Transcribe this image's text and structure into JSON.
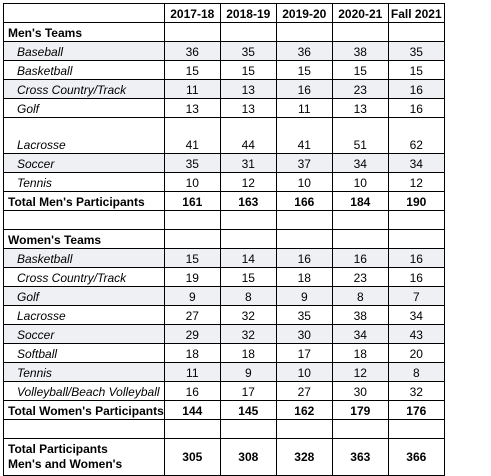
{
  "columns": [
    "2017-18",
    "2018-19",
    "2019-20",
    "2020-21",
    "Fall 2021"
  ],
  "mens": {
    "heading": "Men's Teams",
    "teams": [
      {
        "name": "Baseball",
        "values": [
          "36",
          "35",
          "36",
          "38",
          "35"
        ]
      },
      {
        "name": "Basketball",
        "values": [
          "15",
          "15",
          "15",
          "15",
          "15"
        ]
      },
      {
        "name": "Cross Country/Track",
        "values": [
          "11",
          "13",
          "16",
          "23",
          "16"
        ]
      },
      {
        "name": "Golf",
        "values": [
          "13",
          "13",
          "11",
          "13",
          "16"
        ]
      },
      {
        "name": "Lacrosse",
        "values": [
          "41",
          "44",
          "41",
          "51",
          "62"
        ]
      },
      {
        "name": "Soccer",
        "values": [
          "35",
          "31",
          "37",
          "34",
          "34"
        ]
      },
      {
        "name": "Tennis",
        "values": [
          "10",
          "12",
          "10",
          "10",
          "12"
        ]
      }
    ],
    "total": {
      "label": "Total Men's Participants",
      "values": [
        "161",
        "163",
        "166",
        "184",
        "190"
      ]
    }
  },
  "womens": {
    "heading": "Women's Teams",
    "teams": [
      {
        "name": "Basketball",
        "values": [
          "15",
          "14",
          "16",
          "16",
          "16"
        ]
      },
      {
        "name": "Cross Country/Track",
        "values": [
          "19",
          "15",
          "18",
          "23",
          "16"
        ]
      },
      {
        "name": "Golf",
        "values": [
          "9",
          "8",
          "9",
          "8",
          "7"
        ]
      },
      {
        "name": "Lacrosse",
        "values": [
          "27",
          "32",
          "35",
          "38",
          "34"
        ]
      },
      {
        "name": "Soccer",
        "values": [
          "29",
          "32",
          "30",
          "34",
          "43"
        ]
      },
      {
        "name": "Softball",
        "values": [
          "18",
          "18",
          "17",
          "18",
          "20"
        ]
      },
      {
        "name": "Tennis",
        "values": [
          "11",
          "9",
          "10",
          "12",
          "8"
        ]
      },
      {
        "name": "Volleyball/Beach Volleyball",
        "values": [
          "16",
          "17",
          "27",
          "30",
          "32"
        ]
      }
    ],
    "total": {
      "label": "Total Women's Participants",
      "values": [
        "144",
        "145",
        "162",
        "179",
        "176"
      ]
    }
  },
  "grand_total": {
    "label_line1": "Total Participants",
    "label_line2": "Men's and Women's",
    "values": [
      "305",
      "308",
      "328",
      "363",
      "366"
    ]
  }
}
